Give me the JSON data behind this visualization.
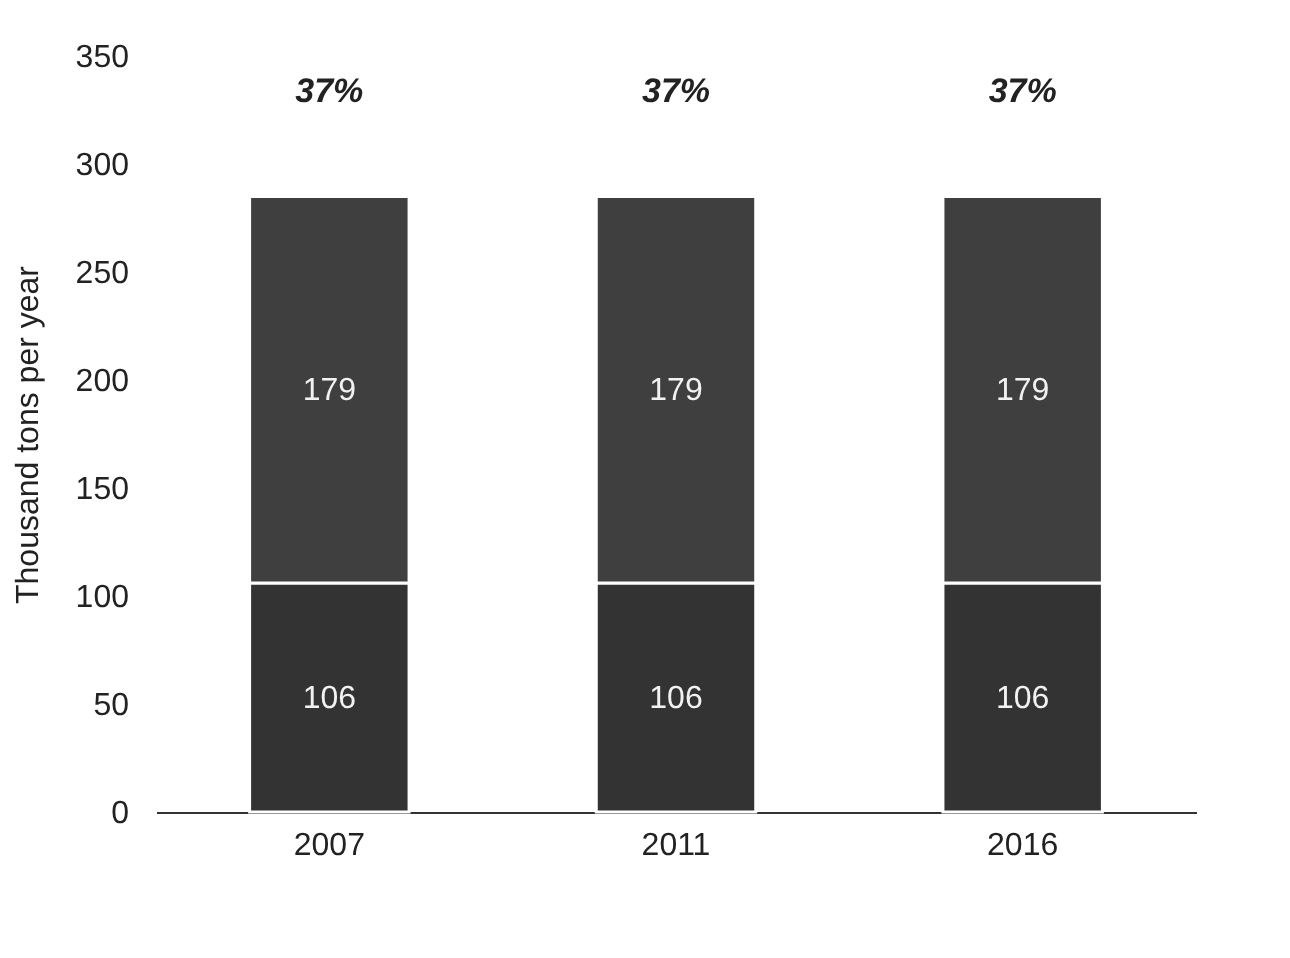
{
  "chart_data": {
    "type": "bar",
    "ylabel": "Thousand tons per year",
    "categories": [
      "2007",
      "2011",
      "2016"
    ],
    "stacked": true,
    "series": [
      {
        "color": "#333333",
        "values": [
          106,
          106,
          106
        ]
      },
      {
        "color": "#3f3f3f",
        "values": [
          179,
          179,
          179
        ]
      }
    ],
    "ylim": [
      0,
      350
    ],
    "yticks": [
      0,
      50,
      100,
      150,
      200,
      250,
      300,
      350
    ],
    "grid": false,
    "legend": false,
    "data_labels": true,
    "annotations": [
      "37%",
      "37%",
      "37%"
    ]
  }
}
